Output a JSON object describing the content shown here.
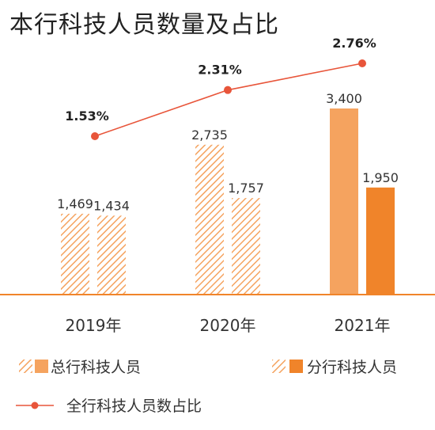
{
  "chart_data": {
    "type": "bar",
    "title": "本行科技人员数量及占比",
    "categories": [
      "2019年",
      "2020年",
      "2021年"
    ],
    "series": [
      {
        "name": "总行科技人员",
        "values": [
          1469,
          2735,
          3400
        ]
      },
      {
        "name": "分行科技人员",
        "values": [
          1434,
          1757,
          1950
        ]
      }
    ],
    "value_labels": {
      "总行科技人员": [
        "1,469",
        "2,735",
        "3,400"
      ],
      "分行科技人员": [
        "1,434",
        "1,757",
        "1,950"
      ]
    },
    "line": {
      "name": "全行科技人员数占比",
      "values": [
        1.53,
        2.31,
        2.76
      ],
      "labels": [
        "1.53%",
        "2.31%",
        "2.76%"
      ]
    },
    "ylim": [
      0,
      3500
    ],
    "grid": false,
    "legend_position": "bottom",
    "colors": {
      "hatch": "#f5a35f",
      "solid_total_2021": "#f5a35f",
      "solid_branch_2021": "#f0842a",
      "line": "#e8553a",
      "axis": "#f0842a"
    }
  }
}
